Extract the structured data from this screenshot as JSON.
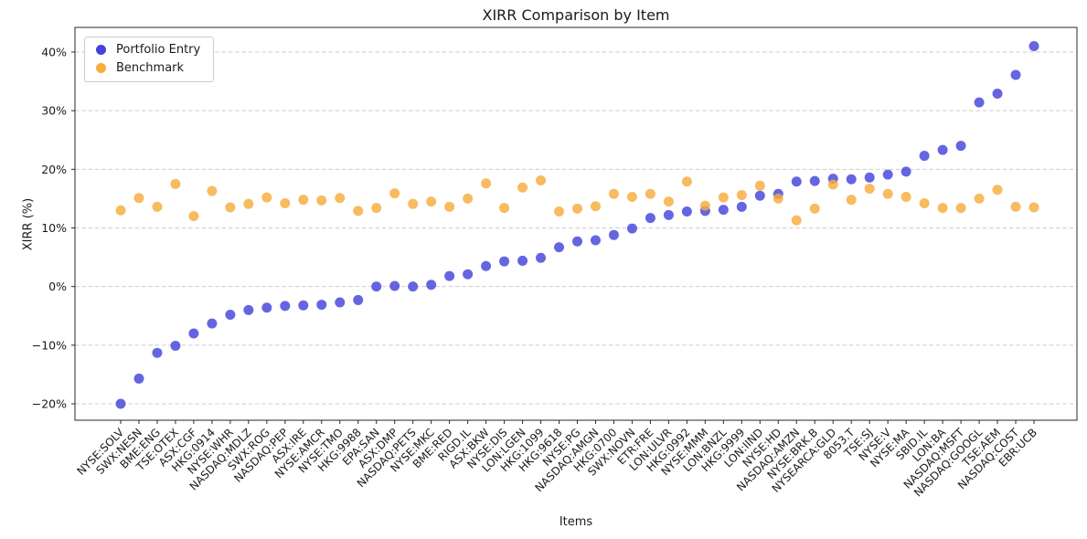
{
  "chart_data": {
    "type": "scatter",
    "title": "XIRR Comparison by Item",
    "xlabel": "Items",
    "ylabel": "XIRR (%)",
    "categories": [
      "NYSE:SOLV",
      "SWX:NESN",
      "BME:ENG",
      "TSE:OTEX",
      "ASX:CGF",
      "HKG:0914",
      "NYSE:WHR",
      "NASDAQ:MDLZ",
      "SWX:ROG",
      "NASDAQ:PEP",
      "ASX:IRE",
      "NYSE:AMCR",
      "NYSE:TMO",
      "HKG:9988",
      "EPA:SAN",
      "ASX:DMP",
      "NASDAQ:PETS",
      "NYSE:MKC",
      "BME:RED",
      "RIGD.IL",
      "ASX:BKW",
      "NYSE:DIS",
      "LON:LGEN",
      "HKG:1099",
      "HKG:9618",
      "NYSE:PG",
      "NASDAQ:AMGN",
      "HKG:0700",
      "SWX:NOVN",
      "ETR:FRE",
      "LON:ULVR",
      "HKG:0992",
      "NYSE:MMM",
      "LON:BNZL",
      "HKG:9999",
      "LON:IIND",
      "NYSE:HD",
      "NASDAQ:AMZN",
      "NYSE:BRK.B",
      "NYSEARCA:GLD",
      "8053.T",
      "TSE:SJ",
      "NYSE:V",
      "NYSE:MA",
      "SBID.IL",
      "LON:BA",
      "NASDAQ:MSFT",
      "NASDAQ:GOOGL",
      "TSE:AEM",
      "NASDAQ:COST",
      "EBR:UCB"
    ],
    "series": [
      {
        "name": "Portfolio Entry",
        "color": "#4343dc",
        "values": [
          -20.0,
          -15.7,
          -11.3,
          -10.1,
          -8.0,
          -6.3,
          -4.8,
          -4.0,
          -3.6,
          -3.3,
          -3.2,
          -3.1,
          -2.7,
          -2.3,
          0.0,
          0.1,
          0.0,
          0.3,
          1.8,
          2.1,
          3.5,
          4.3,
          4.4,
          4.9,
          6.7,
          7.7,
          7.9,
          8.8,
          9.9,
          11.7,
          12.2,
          12.8,
          12.9,
          13.1,
          13.6,
          15.5,
          15.8,
          17.9,
          18.0,
          18.4,
          18.3,
          18.6,
          19.1,
          19.6,
          22.3,
          23.3,
          24.0,
          31.4,
          32.9,
          36.1,
          41.0
        ]
      },
      {
        "name": "Benchmark",
        "color": "#f7ac3c",
        "values": [
          13.0,
          15.1,
          13.6,
          17.5,
          12.0,
          16.3,
          13.5,
          14.1,
          15.2,
          14.2,
          14.8,
          14.7,
          15.1,
          12.9,
          13.4,
          15.9,
          14.1,
          14.5,
          13.6,
          15.0,
          17.6,
          13.4,
          16.9,
          18.1,
          12.8,
          13.3,
          13.7,
          15.8,
          15.3,
          15.8,
          14.5,
          17.9,
          13.8,
          15.2,
          15.6,
          17.2,
          15.0,
          11.3,
          13.3,
          17.4,
          14.8,
          16.7,
          15.8,
          15.3,
          14.2,
          13.4,
          13.4,
          15.0,
          16.5,
          13.6,
          13.5
        ]
      }
    ],
    "ylim": [
      -22.8,
      44.2
    ],
    "yticks": [
      -20,
      -10,
      0,
      10,
      20,
      30,
      40
    ],
    "ytick_labels": [
      "−20%",
      "−10%",
      "0%",
      "10%",
      "20%",
      "30%",
      "40%"
    ],
    "grid": "horizontal-dashed",
    "grid_color": "#cccccc",
    "spine_color": "#2a2a2a",
    "legend_position": "upper-left",
    "marker": {
      "shape": "circle",
      "radius": 5.5,
      "opacity": 0.82
    }
  }
}
